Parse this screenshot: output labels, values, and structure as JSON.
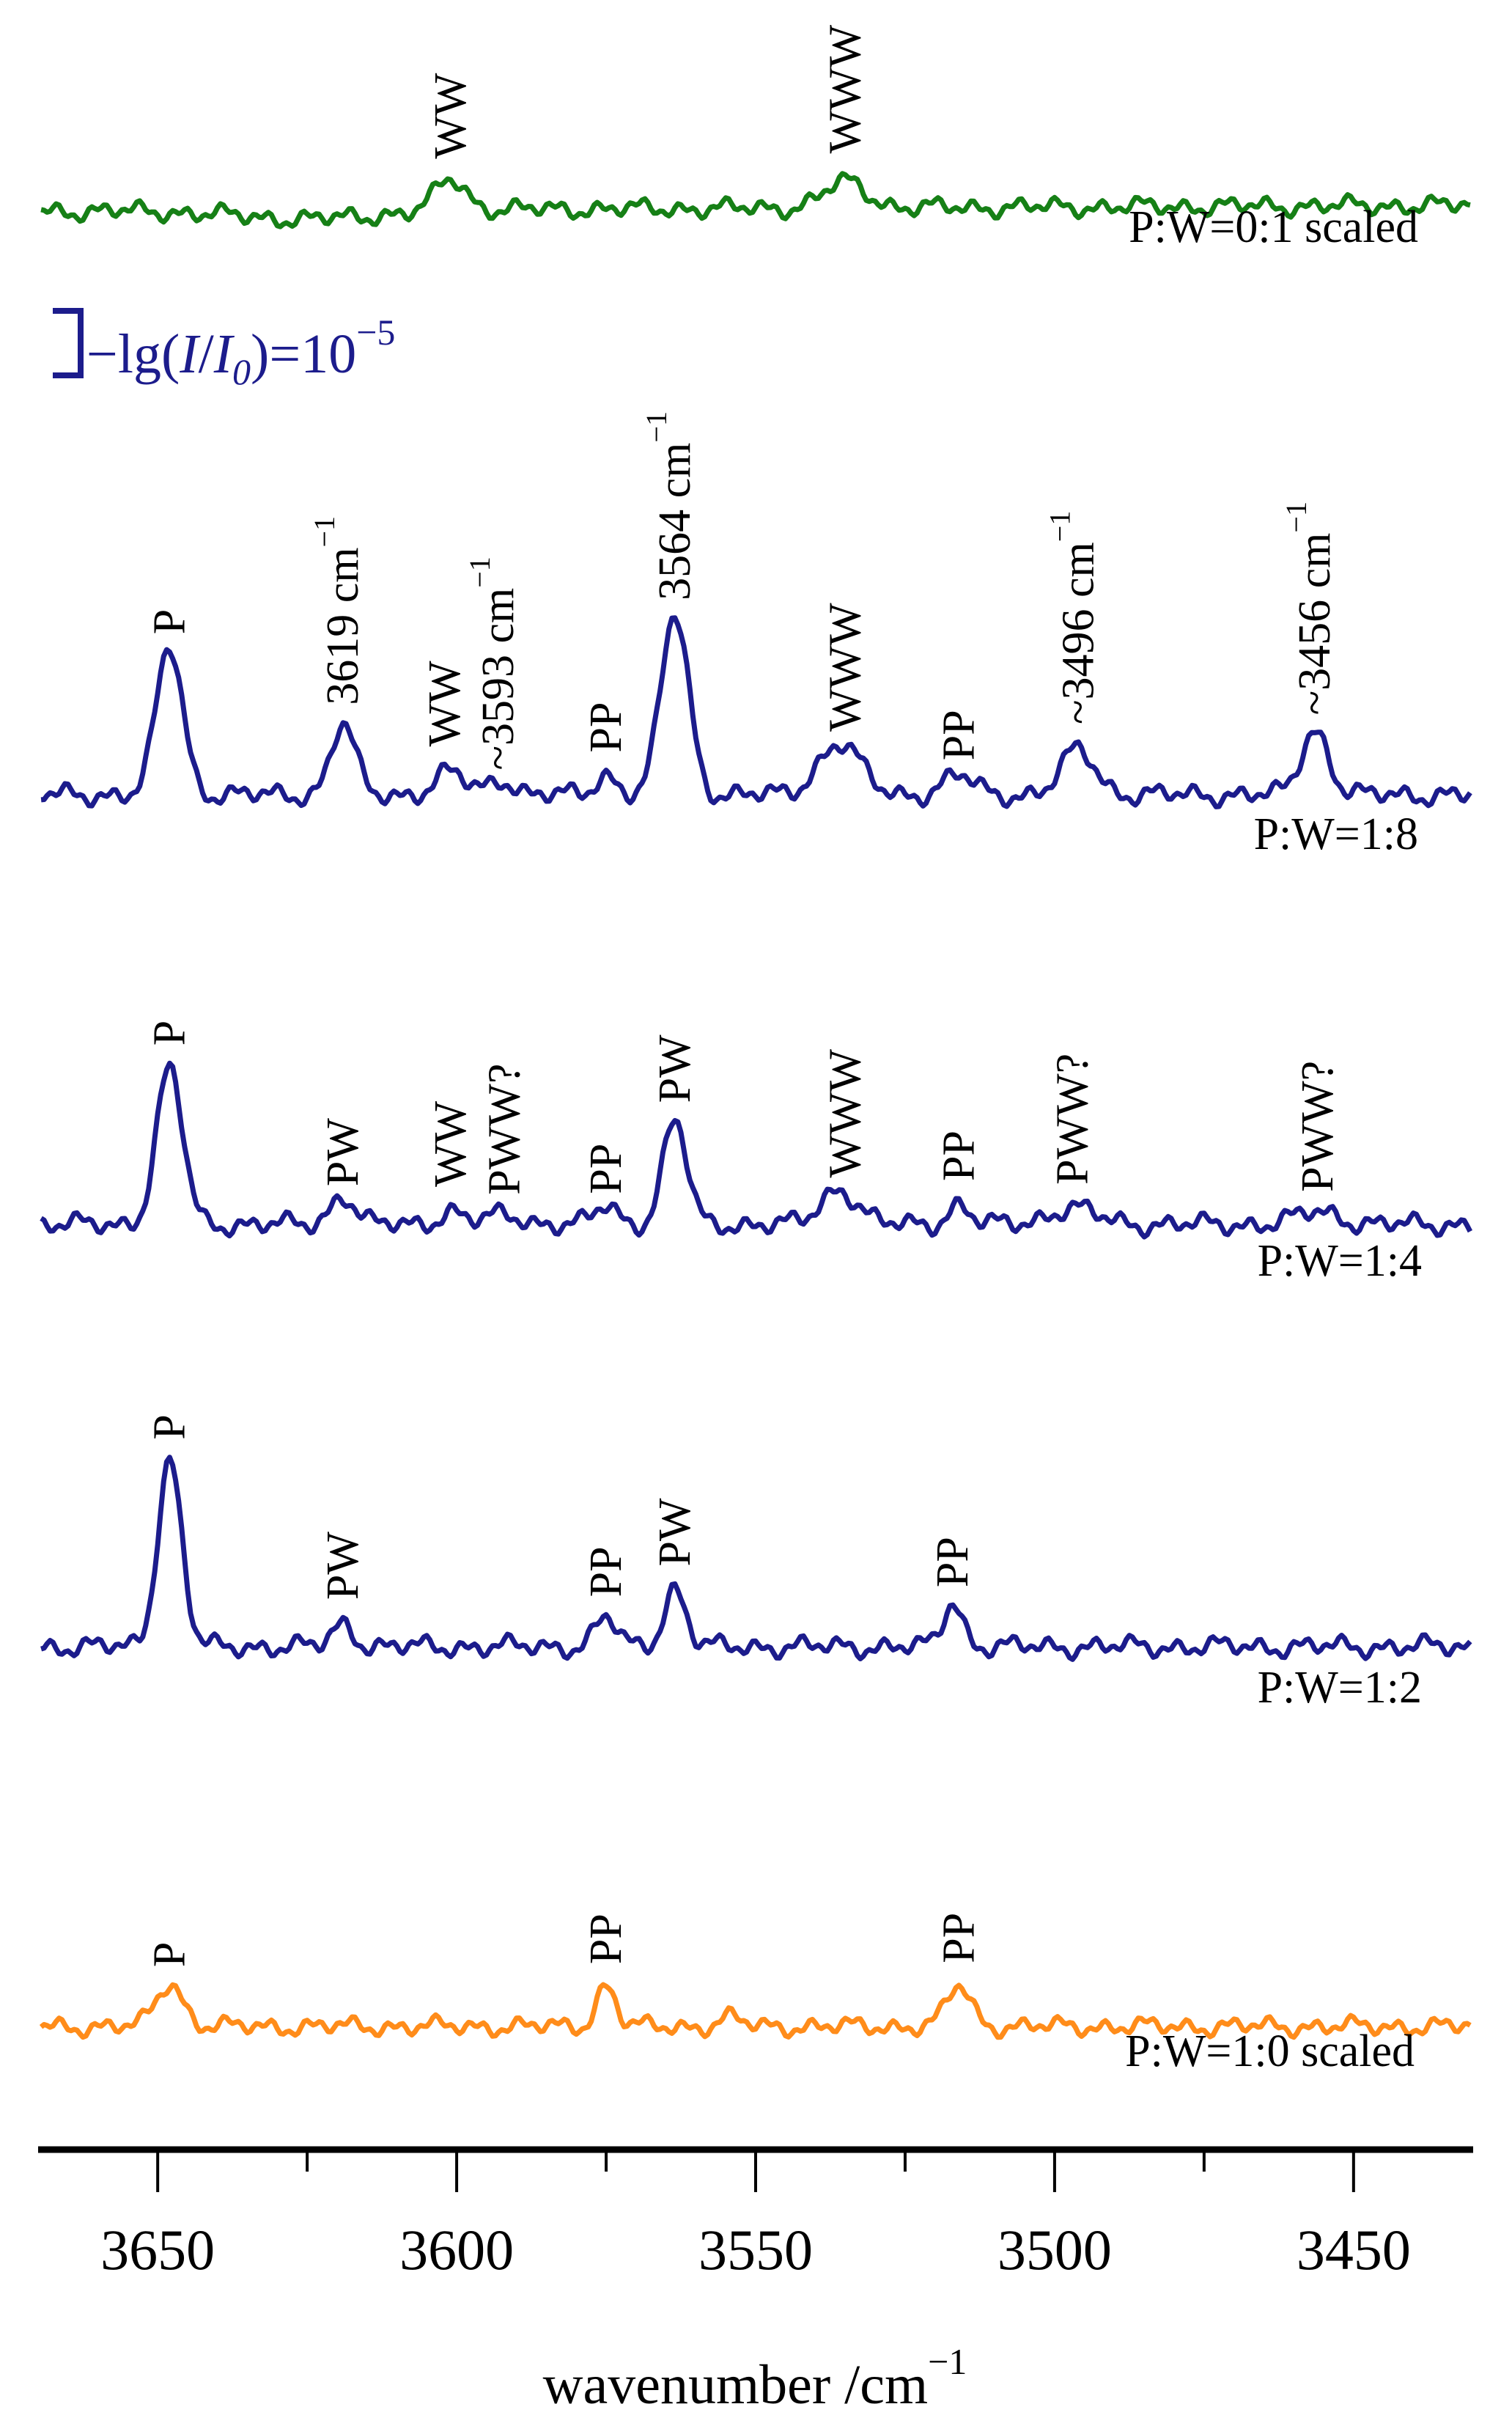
{
  "chart_data": {
    "type": "line",
    "title": "",
    "xlabel": "wavenumber /cm",
    "xlabel_sup": "−1",
    "ylabel": "",
    "xlim": [
      3670,
      3430
    ],
    "xticks": [
      3650,
      3600,
      3550,
      3500,
      3450
    ],
    "xticks_minor": [
      3625,
      3575,
      3525,
      3475
    ],
    "grid": false,
    "scale_bar": {
      "text_pre": "−lg(",
      "I": "I",
      "slash": "/",
      "I0": "I",
      "sub": "0",
      "text_post": ")=10",
      "sup": "−5",
      "value": 1e-05,
      "color": "#1c1c8c"
    },
    "series": [
      {
        "name": "P:W=0:1 scaled",
        "color": "#168016",
        "peaks": [
          {
            "center": 3601,
            "height": 0.55,
            "width": 2.5
          },
          {
            "center": 3535,
            "height": 0.45,
            "width": 3.5
          }
        ],
        "annotations": [
          {
            "x": 3601,
            "text": "WW",
            "sup": ""
          },
          {
            "x": 3535,
            "text": "WWW",
            "sup": ""
          }
        ]
      },
      {
        "name": "P:W=1:8",
        "color": "#1c1c8c",
        "peaks": [
          {
            "center": 3648,
            "height": 2.3,
            "width": 2.2
          },
          {
            "center": 3619,
            "height": 1.1,
            "width": 2.0
          },
          {
            "center": 3601,
            "height": 0.35,
            "width": 2.5
          },
          {
            "center": 3592.5,
            "height": 0.25,
            "width": 2.0
          },
          {
            "center": 3575,
            "height": 0.3,
            "width": 1.8
          },
          {
            "center": 3563.5,
            "height": 2.8,
            "width": 2.3
          },
          {
            "center": 3536,
            "height": 0.8,
            "width": 3.5
          },
          {
            "center": 3516,
            "height": 0.3,
            "width": 2.5
          },
          {
            "center": 3496,
            "height": 0.7,
            "width": 2.8
          },
          {
            "center": 3456.5,
            "height": 1.0,
            "width": 2.3
          }
        ],
        "annotations": [
          {
            "x": 3648,
            "text": "P",
            "sup": ""
          },
          {
            "x": 3619,
            "text": "3619 cm",
            "sup": "−1"
          },
          {
            "x": 3602,
            "text": "WW",
            "sup": ""
          },
          {
            "x": 3593,
            "text": "~3593 cm",
            "sup": "−1"
          },
          {
            "x": 3575,
            "text": "PP",
            "sup": ""
          },
          {
            "x": 3563.5,
            "text": "3564 cm",
            "sup": "−1"
          },
          {
            "x": 3535,
            "text": "WWW",
            "sup": ""
          },
          {
            "x": 3516,
            "text": "PP",
            "sup": ""
          },
          {
            "x": 3496,
            "text": "~3496 cm",
            "sup": "−1"
          },
          {
            "x": 3456.5,
            "text": "~3456 cm",
            "sup": "−1"
          }
        ]
      },
      {
        "name": "P:W=1:4",
        "color": "#1c1c8c",
        "peaks": [
          {
            "center": 3648,
            "height": 2.4,
            "width": 2.2
          },
          {
            "center": 3619,
            "height": 0.45,
            "width": 2.0
          },
          {
            "center": 3601,
            "height": 0.2,
            "width": 2.0
          },
          {
            "center": 3592,
            "height": 0.15,
            "width": 3.0
          },
          {
            "center": 3575,
            "height": 0.3,
            "width": 1.8
          },
          {
            "center": 3563.5,
            "height": 1.6,
            "width": 2.0
          },
          {
            "center": 3536,
            "height": 0.55,
            "width": 3.0
          },
          {
            "center": 3516,
            "height": 0.3,
            "width": 1.8
          },
          {
            "center": 3497,
            "height": 0.25,
            "width": 4.0
          },
          {
            "center": 3456,
            "height": 0.2,
            "width": 3.5
          }
        ],
        "annotations": [
          {
            "x": 3648,
            "text": "P",
            "sup": ""
          },
          {
            "x": 3619,
            "text": "PW",
            "sup": ""
          },
          {
            "x": 3601,
            "text": "WW",
            "sup": ""
          },
          {
            "x": 3592,
            "text": "PWW?",
            "sup": ""
          },
          {
            "x": 3575,
            "text": "PP",
            "sup": ""
          },
          {
            "x": 3563.5,
            "text": "PW",
            "sup": ""
          },
          {
            "x": 3535,
            "text": "WWW",
            "sup": ""
          },
          {
            "x": 3516,
            "text": "PP",
            "sup": ""
          },
          {
            "x": 3497,
            "text": "PWW?",
            "sup": ""
          },
          {
            "x": 3456,
            "text": "PWW?",
            "sup": ""
          }
        ]
      },
      {
        "name": "P:W=1:2",
        "color": "#1c1c8c",
        "peaks": [
          {
            "center": 3648,
            "height": 2.9,
            "width": 2.0
          },
          {
            "center": 3619,
            "height": 0.35,
            "width": 1.8
          },
          {
            "center": 3575,
            "height": 0.45,
            "width": 1.8
          },
          {
            "center": 3563.5,
            "height": 0.9,
            "width": 1.8
          },
          {
            "center": 3517,
            "height": 0.7,
            "width": 1.6
          }
        ],
        "annotations": [
          {
            "x": 3648,
            "text": "P",
            "sup": ""
          },
          {
            "x": 3619,
            "text": "PW",
            "sup": ""
          },
          {
            "x": 3575,
            "text": "PP",
            "sup": ""
          },
          {
            "x": 3563.5,
            "text": "PW",
            "sup": ""
          },
          {
            "x": 3517,
            "text": "PP",
            "sup": ""
          }
        ]
      },
      {
        "name": "P:W=1:0 scaled",
        "color": "#ff8c1a",
        "peaks": [
          {
            "center": 3648,
            "height": 0.75,
            "width": 2.2
          },
          {
            "center": 3575,
            "height": 0.7,
            "width": 1.6
          },
          {
            "center": 3554,
            "height": 0.15,
            "width": 1.8
          },
          {
            "center": 3516,
            "height": 0.7,
            "width": 2.0
          }
        ],
        "annotations": [
          {
            "x": 3648,
            "text": "P",
            "sup": ""
          },
          {
            "x": 3575,
            "text": "PP",
            "sup": ""
          },
          {
            "x": 3516,
            "text": "PP",
            "sup": ""
          }
        ]
      }
    ]
  }
}
